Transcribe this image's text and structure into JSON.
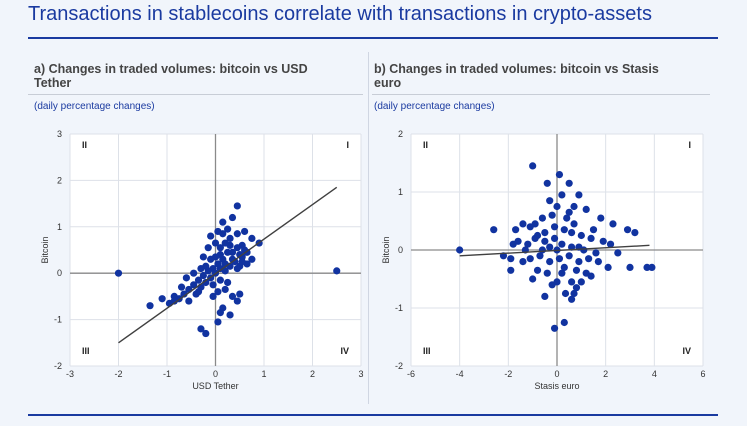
{
  "header": {
    "title": "Transactions in stablecoins correlate with transactions in crypto-assets"
  },
  "chart_data": [
    {
      "type": "scatter",
      "panel_label": "a) Changes in traded volumes: bitcoin vs USD Tether",
      "subtitle": "(daily percentage changes)",
      "xlabel": "USD Tether",
      "ylabel": "Bitcoin",
      "xlim": [
        -3,
        3
      ],
      "ylim": [
        -2,
        3
      ],
      "xticks": [
        "-3",
        "-2",
        "-1",
        "0",
        "1",
        "2",
        "3"
      ],
      "yticks": [
        "3",
        "2",
        "1",
        "0",
        "-1",
        "-2"
      ],
      "quadrants": {
        "I": "I",
        "II": "II",
        "III": "III",
        "IV": "IV"
      },
      "fit_line": {
        "x1": -2.0,
        "y1": -1.5,
        "x2": 2.5,
        "y2": 1.85
      },
      "points": [
        [
          -2.0,
          0.0
        ],
        [
          2.5,
          0.05
        ],
        [
          0.45,
          1.45
        ],
        [
          0.35,
          1.2
        ],
        [
          0.15,
          1.1
        ],
        [
          -0.1,
          0.8
        ],
        [
          0.0,
          0.65
        ],
        [
          0.1,
          0.55
        ],
        [
          0.3,
          0.75
        ],
        [
          0.45,
          0.85
        ],
        [
          0.55,
          0.6
        ],
        [
          0.75,
          0.75
        ],
        [
          0.9,
          0.65
        ],
        [
          0.65,
          0.45
        ],
        [
          0.55,
          0.35
        ],
        [
          0.35,
          0.3
        ],
        [
          0.25,
          0.45
        ],
        [
          0.15,
          0.3
        ],
        [
          0.05,
          0.2
        ],
        [
          -0.05,
          0.1
        ],
        [
          -0.15,
          0.05
        ],
        [
          -0.25,
          -0.05
        ],
        [
          -0.35,
          -0.15
        ],
        [
          -0.45,
          -0.25
        ],
        [
          -0.55,
          -0.35
        ],
        [
          -0.65,
          -0.45
        ],
        [
          -0.75,
          -0.55
        ],
        [
          -0.55,
          -0.6
        ],
        [
          -0.4,
          -0.45
        ],
        [
          -0.3,
          -0.3
        ],
        [
          -0.2,
          -0.2
        ],
        [
          -0.1,
          -0.1
        ],
        [
          0.0,
          0.0
        ],
        [
          0.1,
          0.1
        ],
        [
          0.2,
          0.2
        ],
        [
          0.3,
          0.15
        ],
        [
          0.4,
          0.25
        ],
        [
          0.5,
          0.4
        ],
        [
          0.6,
          0.5
        ],
        [
          0.45,
          0.55
        ],
        [
          0.3,
          0.6
        ],
        [
          0.2,
          0.65
        ],
        [
          0.1,
          0.4
        ],
        [
          0.0,
          0.35
        ],
        [
          -0.1,
          0.3
        ],
        [
          -0.2,
          0.15
        ],
        [
          -0.3,
          0.1
        ],
        [
          -0.45,
          0.0
        ],
        [
          -0.6,
          -0.1
        ],
        [
          -0.7,
          -0.3
        ],
        [
          -0.85,
          -0.5
        ],
        [
          -0.95,
          -0.65
        ],
        [
          -1.35,
          -0.7
        ],
        [
          -1.1,
          -0.55
        ],
        [
          -0.85,
          -0.6
        ],
        [
          0.35,
          -0.5
        ],
        [
          0.45,
          -0.6
        ],
        [
          0.15,
          -0.75
        ],
        [
          0.3,
          -0.9
        ],
        [
          0.1,
          -0.85
        ],
        [
          -0.3,
          -1.2
        ],
        [
          -0.2,
          -1.3
        ],
        [
          0.05,
          -1.05
        ],
        [
          0.5,
          -0.45
        ],
        [
          0.2,
          -0.35
        ],
        [
          0.05,
          -0.4
        ],
        [
          -0.05,
          -0.5
        ],
        [
          0.65,
          0.2
        ],
        [
          0.5,
          0.15
        ],
        [
          0.75,
          0.3
        ],
        [
          0.15,
          0.85
        ],
        [
          0.05,
          0.9
        ],
        [
          -0.15,
          0.55
        ],
        [
          -0.25,
          0.35
        ],
        [
          0.6,
          0.9
        ],
        [
          0.25,
          0.95
        ],
        [
          0.35,
          0.45
        ],
        [
          0.45,
          0.1
        ],
        [
          0.2,
          0.05
        ],
        [
          0.1,
          -0.15
        ],
        [
          -0.05,
          -0.25
        ],
        [
          0.25,
          -0.2
        ],
        [
          -0.35,
          -0.4
        ],
        [
          0.55,
          0.25
        ]
      ]
    },
    {
      "type": "scatter",
      "panel_label": "b) Changes in traded volumes: bitcoin vs Stasis euro",
      "subtitle": "(daily percentage changes)",
      "xlabel": "Stasis euro",
      "ylabel": "Bitcoin",
      "xlim": [
        -6,
        6
      ],
      "ylim": [
        -2,
        2
      ],
      "xticks": [
        "-6",
        "-4",
        "-2",
        "0",
        "2",
        "4",
        "6"
      ],
      "yticks": [
        "2",
        "1",
        "0",
        "-1",
        "-2"
      ],
      "quadrants": {
        "I": "I",
        "II": "II",
        "III": "III",
        "IV": "IV"
      },
      "fit_line": {
        "x1": -4.0,
        "y1": -0.1,
        "x2": 3.8,
        "y2": 0.08
      },
      "points": [
        [
          -4.0,
          0.0
        ],
        [
          -2.6,
          0.35
        ],
        [
          -1.0,
          1.45
        ],
        [
          0.1,
          1.3
        ],
        [
          0.5,
          1.15
        ],
        [
          -0.4,
          1.15
        ],
        [
          0.9,
          0.95
        ],
        [
          0.2,
          0.95
        ],
        [
          -0.3,
          0.85
        ],
        [
          1.2,
          0.7
        ],
        [
          0.7,
          0.75
        ],
        [
          -1.4,
          0.45
        ],
        [
          -1.1,
          0.4
        ],
        [
          1.8,
          0.55
        ],
        [
          2.3,
          0.45
        ],
        [
          2.9,
          0.35
        ],
        [
          3.2,
          0.3
        ],
        [
          2.5,
          -0.05
        ],
        [
          3.0,
          -0.3
        ],
        [
          3.7,
          -0.3
        ],
        [
          3.9,
          -0.3
        ],
        [
          1.4,
          -0.45
        ],
        [
          0.6,
          -0.55
        ],
        [
          -0.2,
          -0.6
        ],
        [
          0.8,
          -0.65
        ],
        [
          0.35,
          -0.75
        ],
        [
          -0.5,
          -0.8
        ],
        [
          0.6,
          -0.85
        ],
        [
          0.7,
          -0.75
        ],
        [
          0.3,
          -1.25
        ],
        [
          -0.1,
          -1.35
        ],
        [
          -1.9,
          -0.35
        ],
        [
          -1.4,
          -0.2
        ],
        [
          -2.2,
          -0.1
        ],
        [
          -1.8,
          0.1
        ],
        [
          -1.2,
          0.1
        ],
        [
          -0.9,
          0.2
        ],
        [
          -0.5,
          0.3
        ],
        [
          -0.1,
          0.2
        ],
        [
          0.3,
          0.35
        ],
        [
          0.6,
          0.3
        ],
        [
          1.0,
          0.25
        ],
        [
          1.4,
          0.2
        ],
        [
          1.9,
          0.15
        ],
        [
          2.2,
          0.1
        ],
        [
          -1.6,
          0.15
        ],
        [
          -1.1,
          -0.15
        ],
        [
          -0.7,
          -0.1
        ],
        [
          -0.3,
          -0.2
        ],
        [
          0.1,
          -0.15
        ],
        [
          0.5,
          -0.1
        ],
        [
          0.9,
          -0.2
        ],
        [
          1.3,
          -0.15
        ],
        [
          1.7,
          -0.2
        ],
        [
          2.1,
          -0.3
        ],
        [
          -0.8,
          -0.35
        ],
        [
          -0.4,
          -0.4
        ],
        [
          0.2,
          -0.4
        ],
        [
          0.8,
          -0.35
        ],
        [
          1.2,
          -0.4
        ],
        [
          -1.0,
          -0.5
        ],
        [
          0.0,
          -0.55
        ],
        [
          1.0,
          -0.55
        ],
        [
          0.4,
          0.55
        ],
        [
          -0.2,
          0.6
        ],
        [
          0.0,
          0.75
        ],
        [
          0.5,
          0.65
        ],
        [
          -0.6,
          0.55
        ],
        [
          1.5,
          0.35
        ],
        [
          -1.7,
          0.35
        ],
        [
          -0.9,
          0.45
        ],
        [
          0.0,
          0.0
        ],
        [
          0.2,
          0.1
        ],
        [
          -0.3,
          0.05
        ],
        [
          0.6,
          0.05
        ],
        [
          -0.6,
          0.0
        ],
        [
          0.9,
          0.05
        ],
        [
          -1.3,
          0.0
        ],
        [
          1.1,
          0.0
        ],
        [
          -0.1,
          0.4
        ],
        [
          0.3,
          -0.3
        ],
        [
          -0.5,
          0.15
        ],
        [
          0.7,
          0.45
        ],
        [
          -0.8,
          0.25
        ],
        [
          1.6,
          -0.05
        ],
        [
          -1.9,
          -0.15
        ]
      ]
    }
  ]
}
